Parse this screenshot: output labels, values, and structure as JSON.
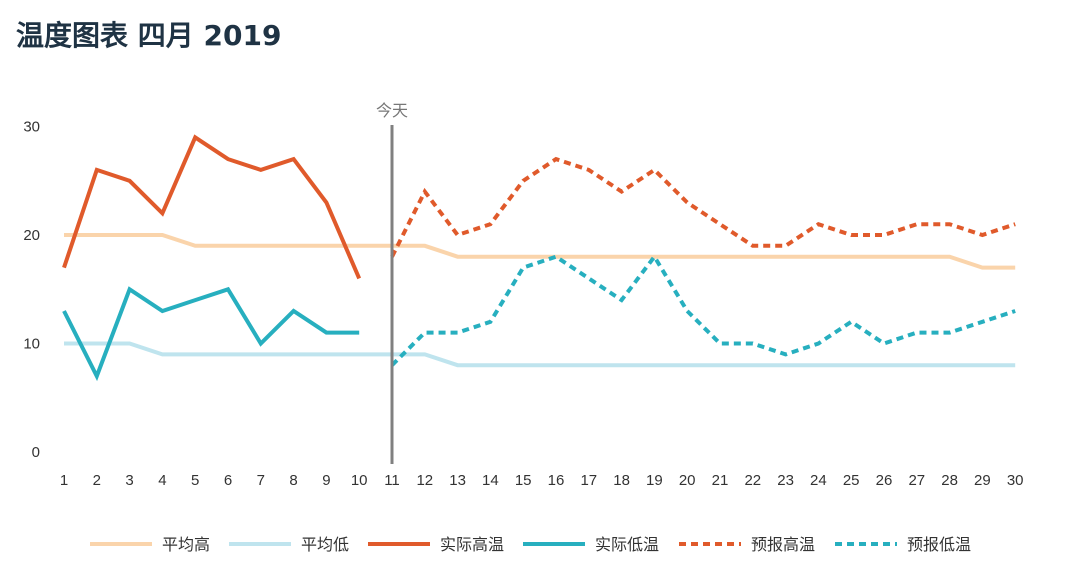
{
  "chart_data": {
    "type": "line",
    "title": "温度图表 四月 2019",
    "x": [
      1,
      2,
      3,
      4,
      5,
      6,
      7,
      8,
      9,
      10,
      11,
      12,
      13,
      14,
      15,
      16,
      17,
      18,
      19,
      20,
      21,
      22,
      23,
      24,
      25,
      26,
      27,
      28,
      29,
      30
    ],
    "ylim": [
      0,
      30
    ],
    "yticks": [
      0,
      10,
      20,
      30
    ],
    "today_marker": {
      "x": 11,
      "label": "今天"
    },
    "grid": false,
    "legend_position": "bottom",
    "series": [
      {
        "name": "平均高",
        "style": "solid",
        "color": "#fad4ab",
        "x": [
          1,
          2,
          3,
          4,
          5,
          6,
          7,
          8,
          9,
          10,
          11,
          12,
          13,
          14,
          15,
          16,
          17,
          18,
          19,
          20,
          21,
          22,
          23,
          24,
          25,
          26,
          27,
          28,
          29,
          30
        ],
        "values": [
          20,
          20,
          20,
          20,
          19,
          19,
          19,
          19,
          19,
          19,
          19,
          19,
          18,
          18,
          18,
          18,
          18,
          18,
          18,
          18,
          18,
          18,
          18,
          18,
          18,
          18,
          18,
          18,
          17,
          17
        ]
      },
      {
        "name": "平均低",
        "style": "solid",
        "color": "#bfe4ee",
        "x": [
          1,
          2,
          3,
          4,
          5,
          6,
          7,
          8,
          9,
          10,
          11,
          12,
          13,
          14,
          15,
          16,
          17,
          18,
          19,
          20,
          21,
          22,
          23,
          24,
          25,
          26,
          27,
          28,
          29,
          30
        ],
        "values": [
          10,
          10,
          10,
          9,
          9,
          9,
          9,
          9,
          9,
          9,
          9,
          9,
          8,
          8,
          8,
          8,
          8,
          8,
          8,
          8,
          8,
          8,
          8,
          8,
          8,
          8,
          8,
          8,
          8,
          8
        ]
      },
      {
        "name": "实际高温",
        "style": "solid",
        "color": "#e05a2b",
        "x": [
          1,
          2,
          3,
          4,
          5,
          6,
          7,
          8,
          9,
          10
        ],
        "values": [
          17,
          26,
          25,
          22,
          29,
          27,
          26,
          27,
          23,
          16
        ]
      },
      {
        "name": "实际低温",
        "style": "solid",
        "color": "#27afbf",
        "x": [
          1,
          2,
          3,
          4,
          5,
          6,
          7,
          8,
          9,
          10
        ],
        "values": [
          13,
          7,
          15,
          13,
          14,
          15,
          10,
          13,
          11,
          11
        ]
      },
      {
        "name": "预报高温",
        "style": "dashed",
        "color": "#e05a2b",
        "x": [
          11,
          12,
          13,
          14,
          15,
          16,
          17,
          18,
          19,
          20,
          21,
          22,
          23,
          24,
          25,
          26,
          27,
          28,
          29,
          30
        ],
        "values": [
          18,
          24,
          20,
          21,
          25,
          27,
          26,
          24,
          26,
          23,
          21,
          19,
          19,
          21,
          20,
          20,
          21,
          21,
          20,
          21
        ]
      },
      {
        "name": "预报低温",
        "style": "dashed",
        "color": "#27afbf",
        "x": [
          11,
          12,
          13,
          14,
          15,
          16,
          17,
          18,
          19,
          20,
          21,
          22,
          23,
          24,
          25,
          26,
          27,
          28,
          29,
          30
        ],
        "values": [
          8,
          11,
          11,
          12,
          17,
          18,
          16,
          14,
          18,
          13,
          10,
          10,
          9,
          10,
          12,
          10,
          11,
          11,
          12,
          13
        ]
      }
    ]
  }
}
